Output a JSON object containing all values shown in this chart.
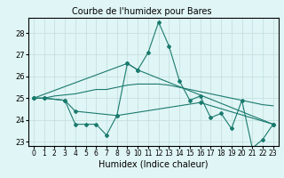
{
  "title": "Courbe de l'humidex pour Bares",
  "xlabel": "Humidex (Indice chaleur)",
  "ylabel": "",
  "x": [
    0,
    1,
    2,
    3,
    4,
    5,
    6,
    7,
    8,
    9,
    10,
    11,
    12,
    13,
    14,
    15,
    16,
    17,
    18,
    19,
    20,
    21,
    22,
    23
  ],
  "line1": [
    25.0,
    25.0,
    null,
    null,
    null,
    null,
    null,
    null,
    null,
    null,
    null,
    null,
    null,
    null,
    null,
    null,
    null,
    null,
    null,
    null,
    null,
    null,
    null,
    null
  ],
  "line2": [
    25.0,
    25.0,
    null,
    24.9,
    23.8,
    23.8,
    23.8,
    23.3,
    24.2,
    26.6,
    26.3,
    27.1,
    28.5,
    27.4,
    25.8,
    24.9,
    25.1,
    24.1,
    24.3,
    23.6,
    24.9,
    22.7,
    23.1,
    23.8
  ],
  "line3": [
    25.0,
    25.0,
    null,
    24.9,
    24.4,
    null,
    null,
    null,
    24.2,
    null,
    null,
    null,
    null,
    null,
    null,
    null,
    24.8,
    null,
    null,
    null,
    null,
    null,
    null,
    23.8
  ],
  "line4": [
    25.0,
    null,
    null,
    null,
    null,
    null,
    null,
    null,
    null,
    26.6,
    26.3,
    null,
    null,
    null,
    null,
    null,
    null,
    null,
    null,
    null,
    null,
    null,
    null,
    23.8
  ],
  "line_trend": [
    25.0,
    25.0,
    25.1,
    25.15,
    25.2,
    25.3,
    25.4,
    25.4,
    25.5,
    25.6,
    25.65,
    25.65,
    25.65,
    25.6,
    25.5,
    25.4,
    25.3,
    25.2,
    25.1,
    25.0,
    24.9,
    24.8,
    24.7,
    24.65
  ],
  "bg_color": "#e0f5f5",
  "line_color": "#1a7a6e",
  "grid_color": "#c0dede",
  "ylim": [
    22.8,
    28.7
  ],
  "yticks": [
    23,
    24,
    25,
    26,
    27,
    28
  ],
  "xticks": [
    0,
    1,
    2,
    3,
    4,
    5,
    6,
    7,
    8,
    9,
    10,
    11,
    12,
    13,
    14,
    15,
    16,
    17,
    18,
    19,
    20,
    21,
    22,
    23
  ]
}
